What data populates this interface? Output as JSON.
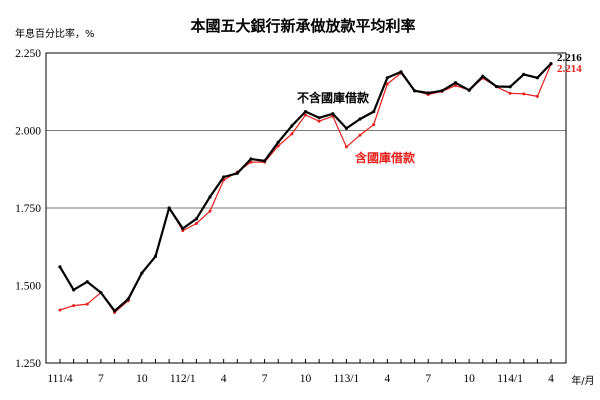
{
  "chart_data": {
    "type": "line",
    "title": "本國五大銀行新承做放款平均利率",
    "ylabel": "年息百分比率，%",
    "xlabel": "年/月",
    "ylim": [
      1.25,
      2.25
    ],
    "yticks": [
      "1.250",
      "1.500",
      "1.750",
      "2.000",
      "2.250"
    ],
    "ytick_values": [
      1.25,
      1.5,
      1.75,
      2.0,
      2.25
    ],
    "gridlines": [
      1.75,
      2.0
    ],
    "x": [
      "111/4",
      "111/5",
      "111/6",
      "111/7",
      "111/8",
      "111/9",
      "111/10",
      "111/11",
      "111/12",
      "112/1",
      "112/2",
      "112/3",
      "112/4",
      "112/5",
      "112/6",
      "112/7",
      "112/8",
      "112/9",
      "112/10",
      "112/11",
      "112/12",
      "113/1",
      "113/2",
      "113/3",
      "113/4",
      "113/5",
      "113/6",
      "113/7",
      "113/8",
      "113/9",
      "113/10",
      "113/11",
      "113/12",
      "114/1",
      "114/2",
      "114/3",
      "114/4"
    ],
    "xtick_labels": [
      {
        "index": 0,
        "label": "111/4"
      },
      {
        "index": 3,
        "label": "7"
      },
      {
        "index": 6,
        "label": "10"
      },
      {
        "index": 9,
        "label": "112/1"
      },
      {
        "index": 12,
        "label": "4"
      },
      {
        "index": 15,
        "label": "7"
      },
      {
        "index": 18,
        "label": "10"
      },
      {
        "index": 21,
        "label": "113/1"
      },
      {
        "index": 24,
        "label": "4"
      },
      {
        "index": 27,
        "label": "7"
      },
      {
        "index": 30,
        "label": "10"
      },
      {
        "index": 33,
        "label": "114/1"
      },
      {
        "index": 36,
        "label": "4"
      }
    ],
    "series": [
      {
        "name": "不含國庫借款",
        "color": "#000000",
        "end_label": "2.216",
        "values": [
          1.56,
          1.486,
          1.512,
          1.477,
          1.418,
          1.456,
          1.54,
          1.594,
          1.75,
          1.684,
          1.715,
          1.786,
          1.85,
          1.862,
          1.908,
          1.902,
          1.962,
          2.015,
          2.061,
          2.041,
          2.054,
          2.007,
          2.037,
          2.061,
          2.17,
          2.189,
          2.128,
          2.121,
          2.128,
          2.154,
          2.13,
          2.175,
          2.142,
          2.141,
          2.181,
          2.17,
          2.216
        ]
      },
      {
        "name": "含國庫借款",
        "color": "#e8201c",
        "end_label": "2.214",
        "values": [
          1.421,
          1.435,
          1.44,
          1.477,
          1.413,
          1.451,
          1.54,
          1.594,
          1.75,
          1.677,
          1.7,
          1.74,
          1.84,
          1.866,
          1.898,
          1.898,
          1.95,
          1.989,
          2.05,
          2.03,
          2.046,
          1.947,
          1.985,
          2.019,
          2.15,
          2.185,
          2.128,
          2.116,
          2.126,
          2.145,
          2.13,
          2.169,
          2.141,
          2.12,
          2.118,
          2.11,
          2.214
        ]
      }
    ]
  }
}
